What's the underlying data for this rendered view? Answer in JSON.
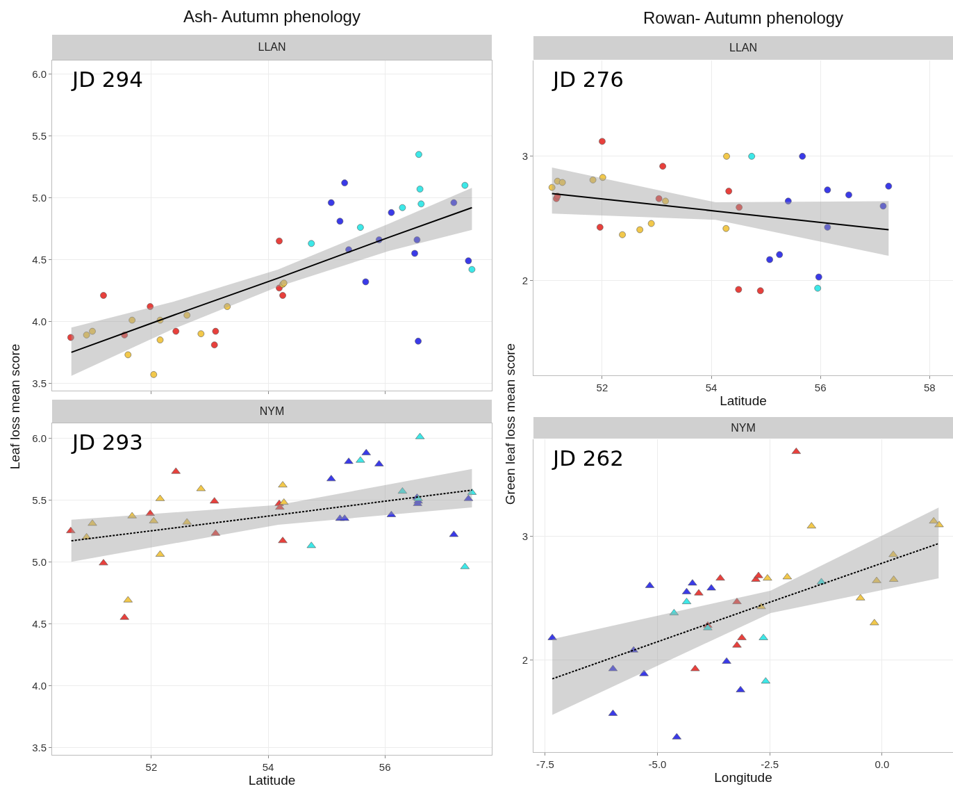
{
  "chart_data": [
    {
      "type": "scatter",
      "title": "Ash- Autumn phenology",
      "subtitle": "LLAN",
      "ylabel": "Leaf loss mean score",
      "annotations": [
        "JD 294"
      ],
      "xlim": [
        50.3,
        57.83
      ],
      "xticks": [
        52,
        54,
        56
      ],
      "ylim": [
        3.44,
        6.11
      ],
      "yticks": [
        {
          "value": 3.5,
          "label": "3.5"
        },
        {
          "value": 4,
          "label": "4.0"
        },
        {
          "value": 4.5,
          "label": "4.5"
        },
        {
          "value": 5,
          "label": "5.0"
        },
        {
          "value": 5.5,
          "label": "5.5"
        },
        {
          "value": 6,
          "label": "6.0"
        }
      ],
      "tick_labels": "y",
      "grid": true,
      "marker": "circle",
      "series": [
        {
          "color": "#e8403c",
          "x": [
            50.62,
            51.18,
            51.54,
            51.98,
            52.42,
            53.1,
            53.08,
            54.19,
            54.19,
            54.25
          ],
          "values": [
            3.87,
            4.21,
            3.89,
            4.12,
            3.92,
            3.92,
            3.81,
            4.65,
            4.27,
            4.21
          ]
        },
        {
          "color": "#f2c84b",
          "x": [
            50.89,
            50.99,
            51.67,
            51.6,
            52.15,
            52.15,
            52.04,
            52.61,
            52.85,
            53.3,
            54.25,
            54.27
          ],
          "values": [
            3.89,
            3.92,
            4.01,
            3.73,
            4.01,
            3.85,
            3.57,
            4.05,
            3.9,
            4.12,
            4.3,
            4.31
          ]
        },
        {
          "color": "#3a3ae8",
          "x": [
            55.08,
            55.31,
            55.23,
            55.38,
            55.9,
            55.67,
            56.11,
            56.55,
            56.51,
            56.57,
            57.18,
            57.43
          ],
          "values": [
            4.96,
            5.12,
            4.81,
            4.58,
            4.66,
            4.32,
            4.88,
            4.66,
            4.55,
            3.84,
            4.96,
            4.49
          ]
        },
        {
          "color": "#3de8e8",
          "x": [
            54.74,
            55.58,
            56.3,
            56.58,
            56.6,
            56.62,
            57.37,
            57.49
          ],
          "values": [
            4.63,
            4.76,
            4.92,
            5.35,
            5.07,
            4.95,
            5.1,
            4.42
          ]
        },
        {
          "type": "line",
          "color": "#000000",
          "line_style": "solid",
          "marker": "none",
          "x": [
            50.63,
            52.38,
            54.17,
            56.07,
            57.49
          ],
          "values": [
            3.75,
            4.05,
            4.35,
            4.68,
            4.92
          ],
          "lower": [
            3.56,
            3.94,
            4.28,
            4.57,
            4.74
          ],
          "upper": [
            3.95,
            4.16,
            4.42,
            4.79,
            5.08
          ]
        }
      ]
    },
    {
      "type": "scatter",
      "title": "NYM",
      "xlabel": "Latitude",
      "annotations": [
        "JD 293"
      ],
      "xlim": [
        50.3,
        57.83
      ],
      "xticks": [
        52,
        54,
        56
      ],
      "ylim": [
        3.44,
        6.12
      ],
      "yticks": [
        {
          "value": 3.5,
          "label": "3.5"
        },
        {
          "value": 4,
          "label": "4.0"
        },
        {
          "value": 4.5,
          "label": "4.5"
        },
        {
          "value": 5,
          "label": "5.0"
        },
        {
          "value": 5.5,
          "label": "5.5"
        },
        {
          "value": 6,
          "label": "6.0"
        }
      ],
      "grid": true,
      "marker": "triangle",
      "series": [
        {
          "color": "#e8403c",
          "x": [
            50.62,
            51.18,
            51.54,
            51.98,
            52.42,
            53.08,
            53.1,
            54.19,
            54.2,
            54.25
          ],
          "values": [
            5.25,
            4.99,
            4.55,
            5.39,
            5.73,
            5.49,
            5.23,
            5.47,
            5.44,
            5.17
          ]
        },
        {
          "color": "#f2c84b",
          "x": [
            50.89,
            50.99,
            51.6,
            51.67,
            52.04,
            52.15,
            52.15,
            52.61,
            52.85,
            54.25,
            54.27
          ],
          "values": [
            5.2,
            5.31,
            4.69,
            5.37,
            5.33,
            5.51,
            5.06,
            5.32,
            5.59,
            5.62,
            5.48
          ]
        },
        {
          "color": "#3a3ae8",
          "x": [
            55.08,
            55.23,
            55.31,
            55.38,
            55.68,
            55.9,
            56.11,
            56.55,
            56.56,
            56.57,
            57.18,
            57.43
          ],
          "values": [
            5.67,
            5.35,
            5.35,
            5.81,
            5.88,
            5.79,
            5.38,
            5.52,
            5.47,
            5.49,
            5.22,
            5.51
          ]
        },
        {
          "color": "#3de8e8",
          "x": [
            54.74,
            55.58,
            56.3,
            56.6,
            56.57,
            57.37,
            57.49
          ],
          "values": [
            5.13,
            5.82,
            5.57,
            6.01,
            5.51,
            4.96,
            5.56
          ]
        },
        {
          "type": "line",
          "color": "#000000",
          "line_style": "dashed",
          "marker": "none",
          "x": [
            50.63,
            54.17,
            57.49
          ],
          "values": [
            5.17,
            5.38,
            5.58
          ],
          "lower": [
            5.0,
            5.3,
            5.44
          ],
          "upper": [
            5.34,
            5.46,
            5.75
          ]
        }
      ]
    },
    {
      "type": "scatter",
      "title": "Rowan- Autumn phenology",
      "subtitle": "LLAN",
      "xlabel": "Latitude",
      "ylabel": "Green leaf loss mean score",
      "annotations": [
        "JD 276"
      ],
      "xlim": [
        50.74,
        58.43
      ],
      "xticks": [
        52,
        54,
        56,
        58
      ],
      "ylim": [
        1.24,
        3.77
      ],
      "yticks": [
        {
          "value": 2,
          "label": "2"
        },
        {
          "value": 3,
          "label": "3"
        }
      ],
      "grid": true,
      "marker": "circle",
      "series": [
        {
          "color": "#e8403c",
          "x": [
            52.0,
            53.11,
            53.04,
            54.32,
            54.51,
            51.96,
            54.5,
            54.9,
            51.16,
            51.18
          ],
          "values": [
            3.12,
            2.92,
            2.66,
            2.72,
            2.59,
            2.43,
            1.93,
            1.92,
            2.66,
            2.68
          ]
        },
        {
          "color": "#f2c84b",
          "x": [
            51.08,
            51.18,
            51.27,
            51.83,
            52.01,
            53.16,
            52.37,
            52.69,
            52.9,
            54.28,
            54.27
          ],
          "values": [
            2.75,
            2.8,
            2.79,
            2.81,
            2.83,
            2.64,
            2.37,
            2.41,
            2.46,
            3.0,
            2.42
          ]
        },
        {
          "color": "#3a3ae8",
          "x": [
            55.67,
            55.07,
            55.25,
            55.41,
            56.13,
            56.52,
            57.15,
            57.25,
            56.13,
            55.97
          ],
          "values": [
            3.0,
            2.17,
            2.21,
            2.64,
            2.73,
            2.69,
            2.6,
            2.76,
            2.43,
            2.03
          ]
        },
        {
          "color": "#3de8e8",
          "x": [
            54.74,
            55.95
          ],
          "values": [
            3.0,
            1.94
          ]
        },
        {
          "type": "line",
          "color": "#000000",
          "line_style": "solid",
          "marker": "none",
          "x": [
            51.08,
            54.08,
            57.25
          ],
          "values": [
            2.7,
            2.56,
            2.41
          ],
          "lower": [
            2.54,
            2.49,
            2.2
          ],
          "upper": [
            2.91,
            2.63,
            2.64
          ]
        }
      ]
    },
    {
      "type": "scatter",
      "title": "NYM",
      "xlabel": "Longitude",
      "annotations": [
        "JD 262"
      ],
      "xlim": [
        -7.76,
        1.58
      ],
      "xticks": [
        {
          "value": -7.5,
          "label": "-7.5"
        },
        {
          "value": -5,
          "label": "-5.0"
        },
        {
          "value": -2.5,
          "label": "-2.5"
        },
        {
          "value": 0,
          "label": "0.0"
        }
      ],
      "ylim": [
        1.26,
        3.78
      ],
      "yticks": [
        {
          "value": 2,
          "label": "2"
        },
        {
          "value": 3,
          "label": "3"
        }
      ],
      "grid": true,
      "marker": "triangle",
      "series": [
        {
          "color": "#3a3ae8",
          "x": [
            -7.34,
            -5.99,
            -5.53,
            -5.3,
            -5.17,
            -5.99,
            -4.57,
            -4.35,
            -4.22,
            -3.8,
            -3.46,
            -3.15
          ],
          "values": [
            2.18,
            1.93,
            2.08,
            1.89,
            2.6,
            1.57,
            1.38,
            2.55,
            2.62,
            2.58,
            1.99,
            1.76
          ]
        },
        {
          "color": "#e8403c",
          "x": [
            -1.91,
            -4.08,
            -3.6,
            -3.88,
            -4.16,
            -3.23,
            -3.12,
            -3.23,
            -2.81,
            -2.75
          ],
          "values": [
            3.68,
            2.54,
            2.66,
            2.28,
            1.93,
            2.47,
            2.18,
            2.12,
            2.65,
            2.68
          ]
        },
        {
          "color": "#f2c84b",
          "x": [
            -1.57,
            1.15,
            1.27,
            0.25,
            0.26,
            -0.12,
            -0.48,
            -0.17,
            -2.55,
            -2.11,
            -2.69
          ],
          "values": [
            3.08,
            3.12,
            3.09,
            2.85,
            2.65,
            2.64,
            2.5,
            2.3,
            2.66,
            2.67,
            2.43
          ]
        },
        {
          "color": "#3de8e8",
          "x": [
            -4.63,
            -4.35,
            -3.88,
            -1.35,
            -2.64,
            -2.59
          ],
          "values": [
            2.38,
            2.47,
            2.26,
            2.63,
            2.18,
            1.83
          ]
        },
        {
          "type": "line",
          "color": "#000000",
          "line_style": "dashed",
          "marker": "none",
          "x": [
            -7.34,
            -2.48,
            1.26
          ],
          "values": [
            1.85,
            2.47,
            2.94
          ],
          "lower": [
            1.56,
            2.38,
            2.66
          ],
          "upper": [
            2.17,
            2.56,
            3.23
          ]
        }
      ]
    }
  ]
}
